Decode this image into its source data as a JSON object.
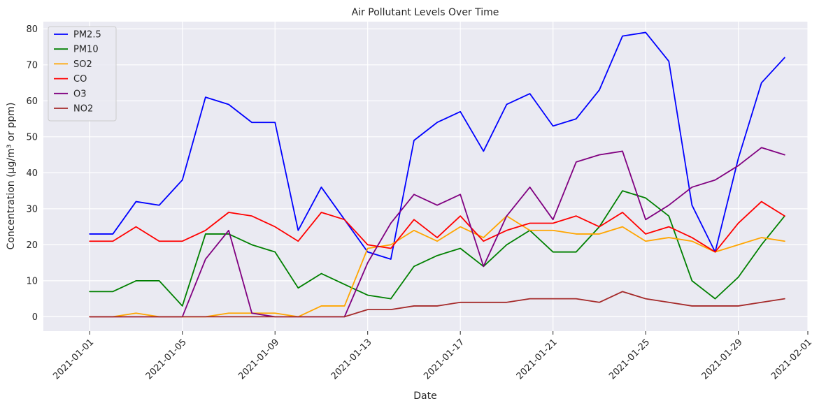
{
  "chart_data": {
    "type": "line",
    "title": "Air Pollutant Levels Over Time",
    "xlabel": "Date",
    "ylabel": "Concentration (µg/m³ or ppm)",
    "x": [
      "2021-01-01",
      "2021-01-02",
      "2021-01-03",
      "2021-01-04",
      "2021-01-05",
      "2021-01-06",
      "2021-01-07",
      "2021-01-08",
      "2021-01-09",
      "2021-01-10",
      "2021-01-11",
      "2021-01-12",
      "2021-01-13",
      "2021-01-14",
      "2021-01-15",
      "2021-01-16",
      "2021-01-17",
      "2021-01-18",
      "2021-01-19",
      "2021-01-20",
      "2021-01-21",
      "2021-01-22",
      "2021-01-23",
      "2021-01-24",
      "2021-01-25",
      "2021-01-26",
      "2021-01-27",
      "2021-01-28",
      "2021-01-29",
      "2021-01-30",
      "2021-01-31"
    ],
    "xlim": [
      "2020-12-30",
      "2021-02-01"
    ],
    "ylim": [
      -4,
      82
    ],
    "x_ticks": [
      "2021-01-01",
      "2021-01-05",
      "2021-01-09",
      "2021-01-13",
      "2021-01-17",
      "2021-01-21",
      "2021-01-25",
      "2021-01-29",
      "2021-02-01"
    ],
    "y_ticks": [
      0,
      10,
      20,
      30,
      40,
      50,
      60,
      70,
      80
    ],
    "grid": true,
    "legend_position": "top-left",
    "series": [
      {
        "name": "PM2.5",
        "color": "#0000ff",
        "values": [
          23,
          23,
          32,
          31,
          38,
          61,
          59,
          54,
          54,
          24,
          36,
          27,
          18,
          16,
          49,
          54,
          57,
          46,
          59,
          62,
          53,
          55,
          63,
          78,
          79,
          71,
          31,
          18,
          44,
          65,
          72
        ]
      },
      {
        "name": "PM10",
        "color": "#008000",
        "values": [
          7,
          7,
          10,
          10,
          3,
          23,
          23,
          20,
          18,
          8,
          12,
          9,
          6,
          5,
          14,
          17,
          19,
          14,
          20,
          24,
          18,
          18,
          25,
          35,
          33,
          28,
          10,
          5,
          11,
          20,
          28
        ]
      },
      {
        "name": "SO2",
        "color": "#ffa500",
        "values": [
          0,
          0,
          1,
          0,
          0,
          0,
          1,
          1,
          1,
          0,
          3,
          3,
          19,
          20,
          24,
          21,
          25,
          22,
          28,
          24,
          24,
          23,
          23,
          25,
          21,
          22,
          21,
          18,
          20,
          22,
          21
        ]
      },
      {
        "name": "CO",
        "color": "#ff0000",
        "values": [
          21,
          21,
          25,
          21,
          21,
          24,
          29,
          28,
          25,
          21,
          29,
          27,
          20,
          19,
          27,
          22,
          28,
          21,
          24,
          26,
          26,
          28,
          25,
          29,
          23,
          25,
          22,
          18,
          26,
          32,
          28
        ]
      },
      {
        "name": "O3",
        "color": "#800080",
        "values": [
          0,
          0,
          0,
          0,
          0,
          16,
          24,
          1,
          0,
          0,
          0,
          0,
          15,
          26,
          34,
          31,
          34,
          14,
          28,
          36,
          27,
          43,
          45,
          46,
          27,
          31,
          36,
          38,
          42,
          47,
          45
        ]
      },
      {
        "name": "NO2",
        "color": "#a52a2a",
        "values": [
          0,
          0,
          0,
          0,
          0,
          0,
          0,
          0,
          0,
          0,
          0,
          0,
          2,
          2,
          3,
          3,
          4,
          4,
          4,
          5,
          5,
          5,
          4,
          7,
          5,
          4,
          3,
          3,
          3,
          4,
          5
        ]
      }
    ]
  }
}
